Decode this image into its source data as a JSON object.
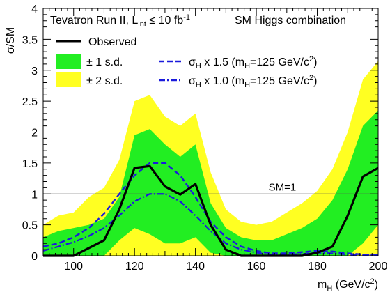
{
  "chart_data": {
    "type": "line",
    "title": {
      "experiment_prefix": "Tevatron Run II, L",
      "experiment_sub": "int",
      "experiment_rel": " ≤ 10 fb",
      "experiment_sup": "-1",
      "combination": "SM Higgs combination"
    },
    "ylabel": "σ/SM",
    "xlabel": {
      "main": "m",
      "sub": "H",
      "unit_pre": " (GeV/c",
      "unit_sup": "2",
      "unit_post": ")"
    },
    "xlim": [
      90,
      200
    ],
    "ylim": [
      0,
      4
    ],
    "xticks": [
      "100",
      "120",
      "140",
      "160",
      "180",
      "200"
    ],
    "yticks": [
      "0",
      "0.5",
      "1",
      "1.5",
      "2",
      "2.5",
      "3",
      "3.5",
      "4"
    ],
    "sm_line": {
      "y": 1,
      "label": "SM=1"
    },
    "colors": {
      "band1": "#22ee22",
      "band2": "#ffff22",
      "observed": "#000000",
      "signal": "#1a1adc",
      "sm": "#555555"
    },
    "legend": {
      "observed": "Observed",
      "band1": "± 1 s.d.",
      "band2": "± 2 s.d.",
      "sig15": {
        "pre": "σ",
        "sub1": "H",
        "mid": " x 1.5 (m",
        "sub2": "H",
        "tail": "=125 GeV/c",
        "sup": "2",
        "end": ")"
      },
      "sig10": {
        "pre": "σ",
        "sub1": "H",
        "mid": " x 1.0 (m",
        "sub2": "H",
        "tail": "=125 GeV/c",
        "sup": "2",
        "end": ")"
      }
    },
    "band2": {
      "x": [
        90,
        95,
        100,
        105,
        110,
        115,
        120,
        125,
        130,
        135,
        140,
        145,
        150,
        155,
        160,
        165,
        170,
        175,
        180,
        185,
        190,
        195,
        200
      ],
      "lo": [
        0,
        0,
        0,
        0,
        0,
        0,
        0,
        0,
        0,
        0,
        0,
        0,
        0,
        0,
        0,
        0,
        0,
        0,
        0,
        0,
        0,
        0,
        0
      ],
      "hi": [
        0.5,
        0.65,
        0.7,
        0.95,
        1.1,
        1.55,
        2.5,
        2.6,
        2.25,
        2.1,
        2.3,
        1.35,
        0.75,
        0.55,
        0.5,
        0.55,
        0.7,
        0.85,
        1.05,
        1.4,
        2.0,
        2.85,
        3.15
      ]
    },
    "band1": {
      "x": [
        90,
        95,
        100,
        105,
        110,
        115,
        120,
        125,
        130,
        135,
        140,
        145,
        150,
        155,
        160,
        165,
        170,
        175,
        180,
        185,
        190,
        195,
        200
      ],
      "lo": [
        0,
        0,
        0,
        0,
        0,
        0.25,
        0.45,
        0.35,
        0.2,
        0.2,
        0.3,
        0.05,
        0,
        0,
        0,
        0,
        0,
        0,
        0,
        0,
        0,
        0.2,
        0.5
      ],
      "hi": [
        0.3,
        0.4,
        0.45,
        0.5,
        0.6,
        0.95,
        1.95,
        2.05,
        1.8,
        1.6,
        1.8,
        0.85,
        0.45,
        0.3,
        0.25,
        0.25,
        0.35,
        0.45,
        0.6,
        0.9,
        1.4,
        2.1,
        2.35
      ]
    },
    "series": [
      {
        "name": "Observed",
        "style": "solid",
        "x": [
          90,
          100,
          110,
          115,
          120,
          125,
          130,
          135,
          140,
          145,
          150,
          155,
          160,
          165,
          170,
          175,
          180,
          185,
          190,
          195,
          200
        ],
        "y": [
          0,
          0,
          0.25,
          0.75,
          1.42,
          1.45,
          1.12,
          0.99,
          1.16,
          0.5,
          0.1,
          0,
          0,
          0,
          0,
          0,
          0.05,
          0.15,
          0.65,
          1.28,
          1.42
        ]
      },
      {
        "name": "σH x 1.5 (mH=125 GeV/c2)",
        "style": "dash",
        "x": [
          90,
          95,
          100,
          105,
          110,
          115,
          120,
          125,
          130,
          135,
          140,
          145,
          150,
          155,
          160,
          165,
          170,
          175,
          180,
          185,
          190,
          195,
          200
        ],
        "y": [
          0.15,
          0.2,
          0.3,
          0.45,
          0.68,
          1.0,
          1.3,
          1.5,
          1.5,
          1.3,
          0.95,
          0.55,
          0.3,
          0.15,
          0.08,
          0.04,
          0.04,
          0.06,
          0.08,
          0.07,
          0.04,
          0.02,
          0.02
        ]
      },
      {
        "name": "σH x 1.0 (mH=125 GeV/c2)",
        "style": "dashdot",
        "x": [
          90,
          95,
          100,
          105,
          110,
          115,
          120,
          125,
          130,
          135,
          140,
          145,
          150,
          155,
          160,
          165,
          170,
          175,
          180,
          185,
          190,
          195,
          200
        ],
        "y": [
          0.08,
          0.15,
          0.22,
          0.32,
          0.45,
          0.65,
          0.88,
          1.0,
          1.0,
          0.88,
          0.65,
          0.4,
          0.2,
          0.1,
          0.05,
          0.02,
          0.02,
          0.03,
          0.05,
          0.04,
          0.02,
          0.01,
          0.01
        ]
      }
    ]
  }
}
